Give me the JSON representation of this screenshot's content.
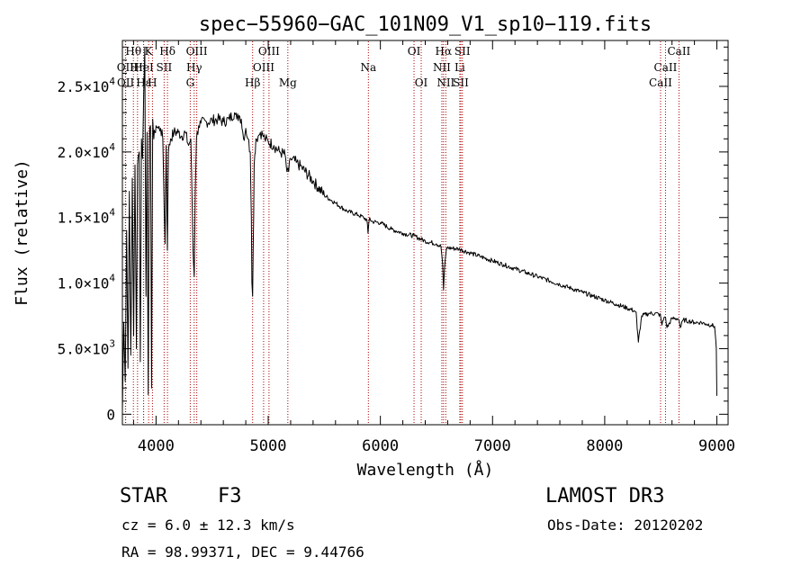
{
  "chart_data": {
    "type": "line",
    "title": "spec−55960−GAC_101N09_V1_sp10−119.fits",
    "xlabel": "Wavelength (Å)",
    "ylabel": "Flux (relative)",
    "xlim": [
      3700,
      9100
    ],
    "ylim": [
      -800,
      28500
    ],
    "xticks": [
      4000,
      5000,
      6000,
      7000,
      8000,
      9000
    ],
    "xtick_labels": [
      "4000",
      "5000",
      "6000",
      "7000",
      "8000",
      "9000"
    ],
    "yticks": [
      0,
      5000,
      10000,
      15000,
      20000,
      25000
    ],
    "ytick_labels": [
      {
        "mant": "0",
        "exp": ""
      },
      {
        "mant": "5.0×10",
        "exp": "3"
      },
      {
        "mant": "1.0×10",
        "exp": "4"
      },
      {
        "mant": "1.5×10",
        "exp": "4"
      },
      {
        "mant": "2.0×10",
        "exp": "4"
      },
      {
        "mant": "2.5×10",
        "exp": "4"
      }
    ],
    "grid": false,
    "series": [
      {
        "name": "spectrum",
        "x": [
          3700,
          3712,
          3725,
          3738,
          3750,
          3762,
          3775,
          3788,
          3800,
          3812,
          3825,
          3835,
          3850,
          3860,
          3870,
          3880,
          3890,
          3900,
          3910,
          3920,
          3930,
          3940,
          3950,
          3960,
          3970,
          3980,
          3990,
          4000,
          4020,
          4040,
          4060,
          4080,
          4090,
          4101,
          4110,
          4130,
          4160,
          4200,
          4230,
          4260,
          4290,
          4310,
          4330,
          4340,
          4350,
          4360,
          4380,
          4400,
          4450,
          4500,
          4550,
          4600,
          4650,
          4700,
          4720,
          4740,
          4760,
          4780,
          4800,
          4820,
          4840,
          4850,
          4855,
          4861,
          4866,
          4875,
          4890,
          4910,
          4930,
          4950,
          4970,
          5000,
          5050,
          5100,
          5150,
          5167,
          5175,
          5183,
          5200,
          5250,
          5300,
          5400,
          5500,
          5600,
          5700,
          5800,
          5850,
          5880,
          5890,
          5896,
          5905,
          5920,
          6000,
          6100,
          6200,
          6300,
          6400,
          6500,
          6540,
          6555,
          6563,
          6571,
          6590,
          6700,
          6800,
          6900,
          7000,
          7100,
          7200,
          7300,
          7400,
          7500,
          7600,
          7700,
          7800,
          7900,
          8000,
          8100,
          8200,
          8260,
          8280,
          8290,
          8300,
          8330,
          8400,
          8480,
          8498,
          8510,
          8530,
          8542,
          8555,
          8600,
          8650,
          8662,
          8675,
          8700,
          8750,
          8800,
          8850,
          8900,
          8950,
          8980,
          8995,
          9000
        ],
        "y": [
          200,
          7000,
          2500,
          14000,
          3500,
          17000,
          4500,
          18000,
          6000,
          19000,
          5000,
          19000,
          20000,
          4000,
          21000,
          19500,
          24500,
          28000,
          9000,
          21500,
          1500,
          21000,
          22000,
          2000,
          22500,
          21000,
          21500,
          22000,
          21800,
          21800,
          21000,
          13000,
          20500,
          12500,
          20000,
          21000,
          21500,
          21500,
          21200,
          21500,
          20500,
          21000,
          12500,
          10500,
          17000,
          21000,
          22000,
          22200,
          22300,
          22400,
          22500,
          22300,
          22500,
          23000,
          22500,
          22800,
          22500,
          21000,
          21800,
          21000,
          20000,
          15000,
          10000,
          9000,
          12500,
          19000,
          21000,
          21200,
          21500,
          21300,
          21000,
          20800,
          20500,
          20000,
          19800,
          18500,
          18800,
          18500,
          19500,
          19200,
          18800,
          17800,
          16700,
          16100,
          15500,
          15200,
          15000,
          14800,
          13800,
          14500,
          15000,
          14700,
          14600,
          14100,
          13800,
          13600,
          13200,
          13000,
          12800,
          11500,
          9500,
          11000,
          12700,
          12600,
          12300,
          12000,
          11700,
          11400,
          11100,
          10800,
          10500,
          10200,
          9900,
          9600,
          9300,
          9000,
          8700,
          8400,
          8100,
          7900,
          7800,
          6500,
          5500,
          7500,
          7700,
          7650,
          7500,
          6800,
          7400,
          7400,
          6600,
          7300,
          7300,
          7200,
          6600,
          7200,
          7100,
          7000,
          7000,
          6900,
          6800,
          6700,
          5000,
          1400
        ]
      }
    ],
    "lines": [
      {
        "label": "Hθ",
        "wave": 3798,
        "row": 0
      },
      {
        "label": "K",
        "wave": 3934,
        "row": 0
      },
      {
        "label": "Hδ",
        "wave": 4102,
        "row": 0
      },
      {
        "label": "OIII",
        "wave": 4363,
        "row": 0
      },
      {
        "label": "OIII",
        "wave": 5007,
        "row": 0
      },
      {
        "label": "OI",
        "wave": 6300,
        "row": 0
      },
      {
        "label": "Hα",
        "wave": 6563,
        "row": 0
      },
      {
        "label": "SII",
        "wave": 6731,
        "row": 0
      },
      {
        "label": "CaII",
        "wave": 8662,
        "row": 0
      },
      {
        "label": "OII",
        "wave": 3727,
        "row": 1
      },
      {
        "label": "Hη",
        "wave": 3835,
        "row": 1
      },
      {
        "label": "HeI",
        "wave": 3889,
        "row": 1
      },
      {
        "label": "SII",
        "wave": 4072,
        "row": 1
      },
      {
        "label": "Hγ",
        "wave": 4340,
        "row": 1
      },
      {
        "label": "OIII",
        "wave": 4959,
        "row": 1
      },
      {
        "label": "Na",
        "wave": 5893,
        "row": 1
      },
      {
        "label": "NII",
        "wave": 6548,
        "row": 1
      },
      {
        "label": "Li",
        "wave": 6708,
        "row": 1
      },
      {
        "label": "CaII",
        "wave": 8542,
        "row": 1
      },
      {
        "label": "OII",
        "wave": 3729,
        "row": 2
      },
      {
        "label": "Hε",
        "wave": 3889,
        "row": 2
      },
      {
        "label": "H",
        "wave": 3968,
        "row": 2
      },
      {
        "label": "G",
        "wave": 4305,
        "row": 2
      },
      {
        "label": "Hβ",
        "wave": 4861,
        "row": 2
      },
      {
        "label": "Mg",
        "wave": 5175,
        "row": 2
      },
      {
        "label": "OI",
        "wave": 6364,
        "row": 2
      },
      {
        "label": "NII",
        "wave": 6583,
        "row": 2
      },
      {
        "label": "SII",
        "wave": 6717,
        "row": 2
      },
      {
        "label": "CaII",
        "wave": 8498,
        "row": 2
      }
    ],
    "colors": {
      "data": "#000000",
      "lines": "#aa0000",
      "axis": "#000000"
    }
  },
  "info": {
    "object_class": "STAR",
    "subclass": "F3",
    "survey": "LAMOST DR3",
    "redshift": "cz = 6.0 ± 12.3 km/s",
    "obs_date": "Obs-Date: 20120202",
    "coords": "RA =  98.99371, DEC =   9.44766"
  }
}
